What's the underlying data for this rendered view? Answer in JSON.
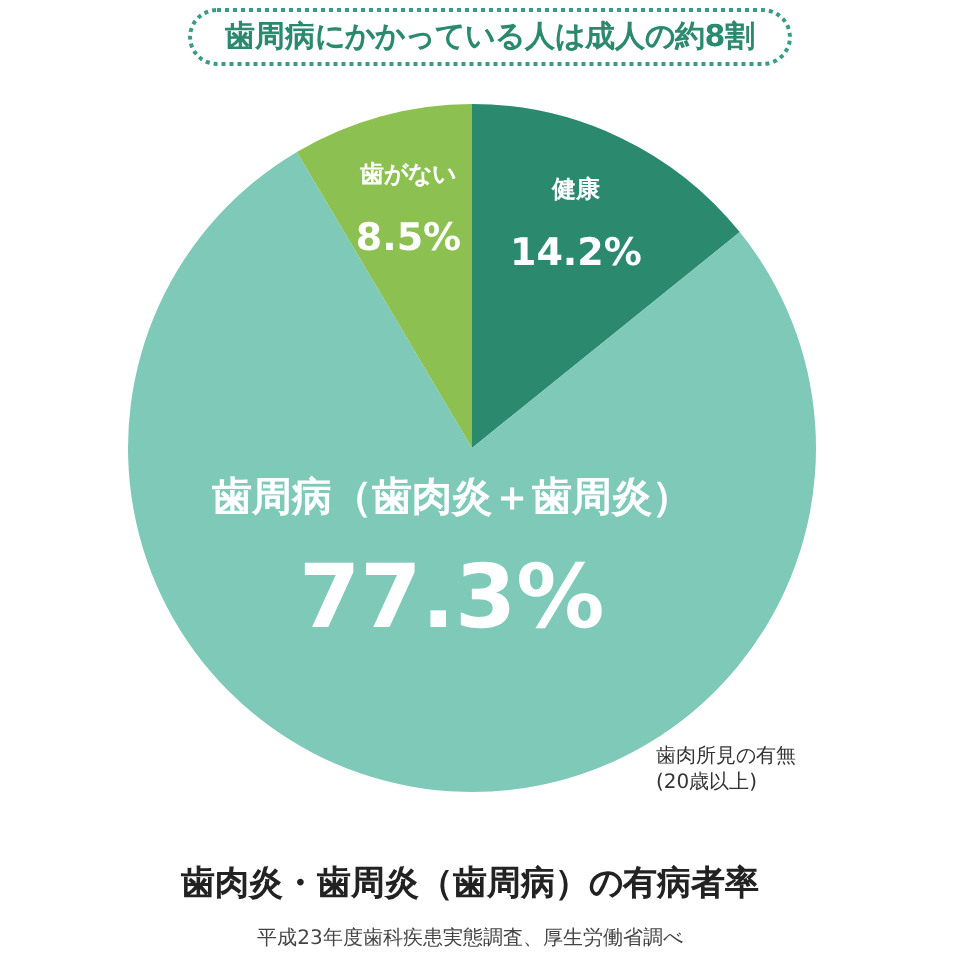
{
  "chart_data": {
    "type": "pie",
    "title": "歯周病にかかっている人は成人の約8割",
    "subtitle": "歯肉炎・歯周炎（歯周病）の有病者率",
    "categories": [
      "健康",
      "歯周病（歯肉炎＋歯周炎）",
      "歯がない"
    ],
    "values": [
      14.2,
      77.3,
      8.5
    ],
    "colors": [
      "#2b8a6e",
      "#7fc9b9",
      "#8cc152"
    ],
    "value_labels": [
      "14.2%",
      "77.3%",
      "8.5%"
    ],
    "annotations": [
      "歯肉所見の有無",
      "(20歳以上)",
      "平成23年度歯科疾患実態調査、厚生労働省調べ"
    ],
    "legend": false
  }
}
